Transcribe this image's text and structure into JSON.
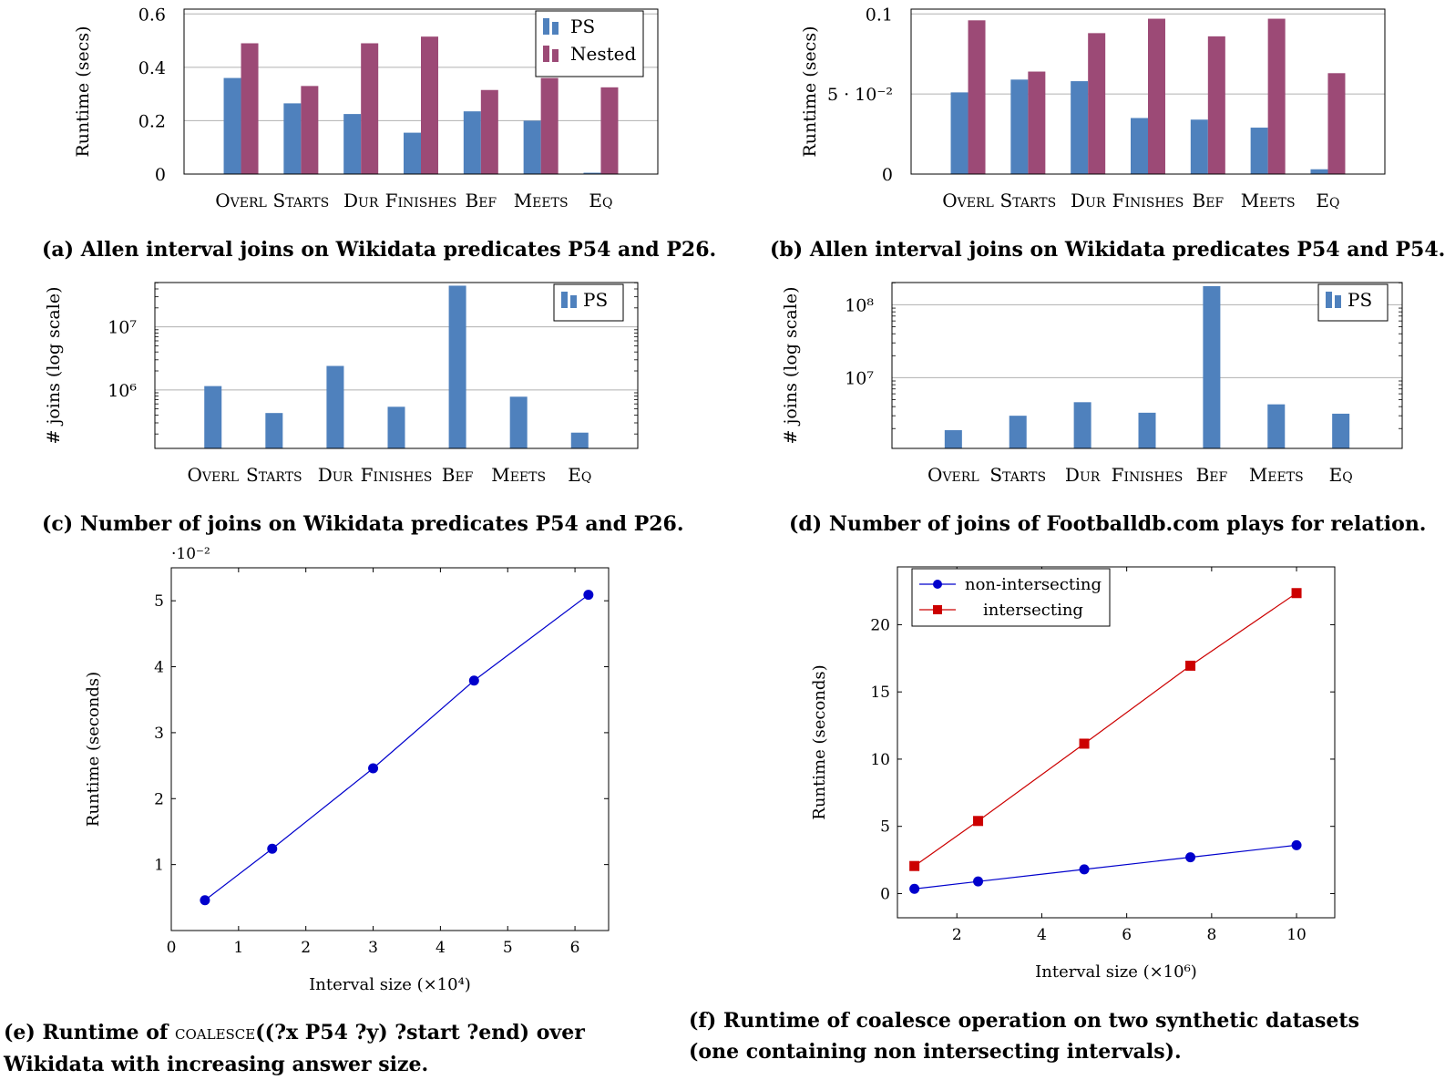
{
  "colors": {
    "ps": "#4f81bd",
    "nested": "#9c4a76",
    "blue_line": "#0000cc",
    "red_line": "#cc0000",
    "grid": "#b0b0b0"
  },
  "captions": {
    "a": "(a) Allen interval joins on Wikidata predicates P54 and P26.",
    "b": "(b) Allen interval joins on Wikidata predicates P54 and P54.",
    "c": "(c) Number of joins on Wikidata predicates P54 and P26.",
    "d": "(d) Number of joins of Footballdb.com plays for relation.",
    "e_part1": "(e) Runtime of",
    "e_code": "coalesce",
    "e_part2": "((?x P54 ?y) ?start ?end) over",
    "e_line2": "Wikidata with increasing answer size.",
    "f_line1": "(f) Runtime of coalesce operation on two synthetic datasets",
    "f_line2": "(one containing non intersecting intervals)."
  },
  "chart_data": [
    {
      "id": "a",
      "type": "bar",
      "categories": [
        "Overl",
        "Starts",
        "Dur",
        "Finishes",
        "Bef",
        "Meets",
        "Eq"
      ],
      "series": [
        {
          "name": "PS",
          "values": [
            0.36,
            0.265,
            0.225,
            0.155,
            0.235,
            0.2,
            0.005
          ]
        },
        {
          "name": "Nested",
          "values": [
            0.49,
            0.33,
            0.49,
            0.515,
            0.315,
            0.36,
            0.325
          ]
        }
      ],
      "ylabel": "Runtime (secs)",
      "ylim": [
        0,
        0.6
      ],
      "yticks": [
        0,
        0.2,
        0.4,
        0.6
      ],
      "yticklabels": [
        "0",
        "0.2",
        "0.4",
        "0.6"
      ],
      "legend": "top-right",
      "grid": true
    },
    {
      "id": "b",
      "type": "bar",
      "categories": [
        "Overl",
        "Starts",
        "Dur",
        "Finishes",
        "Bef",
        "Meets",
        "Eq"
      ],
      "series": [
        {
          "name": "PS",
          "values": [
            0.051,
            0.059,
            0.058,
            0.035,
            0.034,
            0.029,
            0.003
          ]
        },
        {
          "name": "Nested",
          "values": [
            0.096,
            0.064,
            0.088,
            0.097,
            0.086,
            0.097,
            0.063
          ]
        }
      ],
      "ylabel": "Runtime (secs)",
      "ylim": [
        0,
        0.1
      ],
      "yticks": [
        0,
        0.05,
        0.1
      ],
      "yticklabels": [
        "0",
        "5 · 10⁻²",
        "0.1"
      ],
      "grid": true
    },
    {
      "id": "c",
      "type": "bar",
      "categories": [
        "Overl",
        "Starts",
        "Dur",
        "Finishes",
        "Bef",
        "Meets",
        "Eq"
      ],
      "series": [
        {
          "name": "PS",
          "values": [
            1150000,
            430000,
            2400000,
            540000,
            45000000,
            780000,
            210000
          ]
        }
      ],
      "ylabel": "# joins (log scale)",
      "yscale": "log",
      "yticks": [
        1000000,
        10000000
      ],
      "yticklabels": [
        "10⁶",
        "10⁷"
      ],
      "legend": "top-right",
      "grid": true
    },
    {
      "id": "d",
      "type": "bar",
      "categories": [
        "Overl",
        "Starts",
        "Dur",
        "Finishes",
        "Bef",
        "Meets",
        "Eq"
      ],
      "series": [
        {
          "name": "PS",
          "values": [
            1900000,
            3000000,
            4600000,
            3300000,
            180000000,
            4300000,
            3200000
          ]
        }
      ],
      "ylabel": "# joins (log scale)",
      "yscale": "log",
      "yticks": [
        10000000,
        100000000
      ],
      "yticklabels": [
        "10⁷",
        "10⁸"
      ],
      "legend": "top-right",
      "grid": true
    },
    {
      "id": "e",
      "type": "line",
      "x": [
        0.5,
        1.5,
        3,
        4.5,
        6.2
      ],
      "series": [
        {
          "name": "runtime",
          "values": [
            0.46,
            1.24,
            2.46,
            3.79,
            5.09
          ]
        }
      ],
      "xlabel": "Interval size (×10⁴)",
      "ylabel": "Runtime (seconds)",
      "xlim": [
        0,
        6.5
      ],
      "ylim": [
        0,
        5.5
      ],
      "xticks": [
        0,
        1,
        2,
        3,
        4,
        5,
        6
      ],
      "yticks": [
        1,
        2,
        3,
        4,
        5
      ],
      "y_multiplier": "·10⁻²",
      "grid": false
    },
    {
      "id": "f",
      "type": "line",
      "x": [
        1,
        2.5,
        5,
        7.5,
        10
      ],
      "series": [
        {
          "name": "non-intersecting",
          "values": [
            0.35,
            0.9,
            1.8,
            2.7,
            3.6
          ]
        },
        {
          "name": "intersecting",
          "values": [
            2.05,
            5.4,
            11.15,
            16.95,
            22.35
          ]
        }
      ],
      "xlabel": "Interval size (×10⁶)",
      "ylabel": "Runtime (seconds)",
      "xlim": [
        0.6,
        10.9
      ],
      "ylim": [
        -1.8,
        24.3
      ],
      "xticks": [
        2,
        4,
        6,
        8,
        10
      ],
      "yticks": [
        0,
        5,
        10,
        15,
        20
      ],
      "legend": "top-left",
      "grid": false
    }
  ]
}
